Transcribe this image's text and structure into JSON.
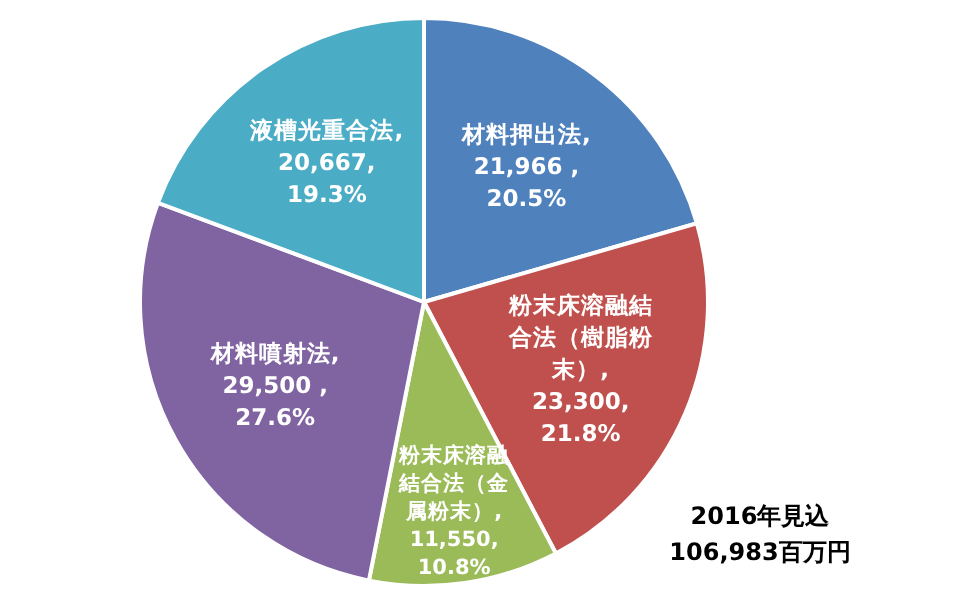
{
  "chart_data": {
    "type": "pie",
    "categories": [
      "材料押出法",
      "粉末床溶融結合法（樹脂粉末）",
      "粉末床溶融結合法（金属粉末）",
      "材料噴射法",
      "液槽光重合法"
    ],
    "values": [
      21966,
      23300,
      11550,
      29500,
      20667
    ],
    "value_labels": [
      ", 21,966 , 20.5%",
      ", 23,300, 21.8%",
      ", 11,550, 10.8%",
      ", 29,500 , 27.6%",
      ", 20,667, 19.3%"
    ],
    "colors": [
      "#4f81bd",
      "#c0504d",
      "#9bbb59",
      "#8064a2",
      "#4bacc6"
    ],
    "annotations": [
      "2016年見込",
      "106,983百万円"
    ]
  }
}
